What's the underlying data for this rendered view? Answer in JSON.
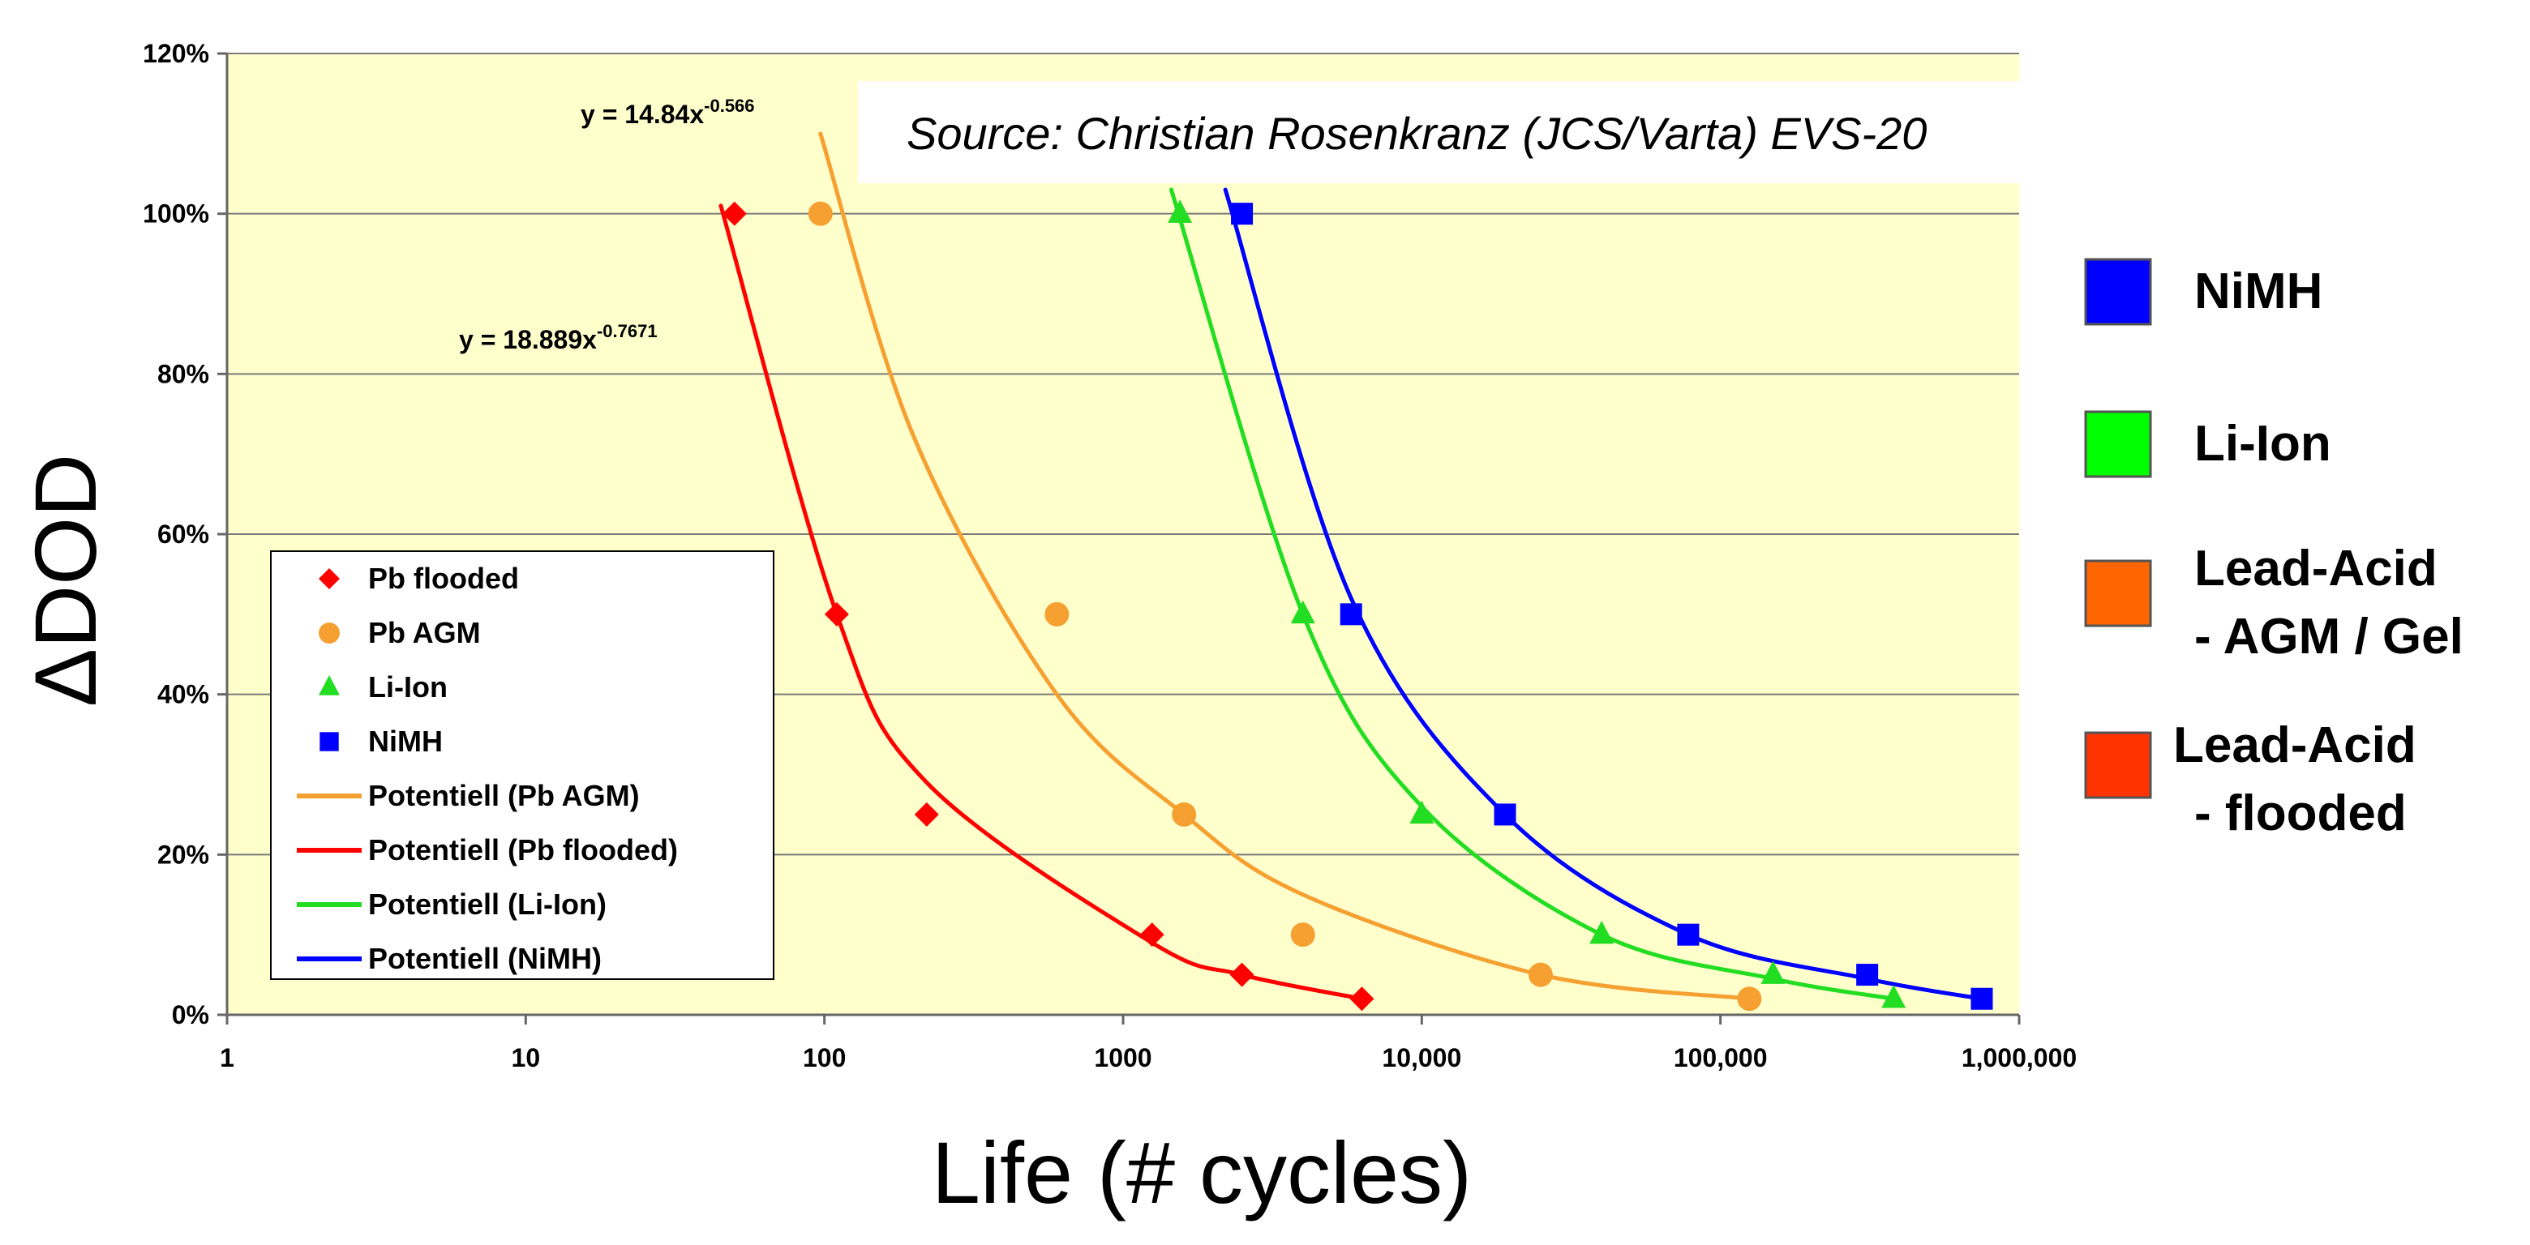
{
  "chart_data": {
    "type": "scatter",
    "x_scale": "log",
    "xlim": [
      1,
      1000000
    ],
    "ylim": [
      0,
      120
    ],
    "xlabel": "Life (# cycles)",
    "ylabel": "ΔDOD",
    "x_ticks": [
      {
        "value": 1,
        "label": "1"
      },
      {
        "value": 10,
        "label": "10"
      },
      {
        "value": 100,
        "label": "100"
      },
      {
        "value": 1000,
        "label": "1000"
      },
      {
        "value": 10000,
        "label": "10,000"
      },
      {
        "value": 100000,
        "label": "100,000"
      },
      {
        "value": 1000000,
        "label": "1,000,000"
      }
    ],
    "y_ticks": [
      {
        "value": 0,
        "label": "0%"
      },
      {
        "value": 20,
        "label": "20%"
      },
      {
        "value": 40,
        "label": "40%"
      },
      {
        "value": 60,
        "label": "60%"
      },
      {
        "value": 80,
        "label": "80%"
      },
      {
        "value": 100,
        "label": "100%"
      },
      {
        "value": 120,
        "label": "120%"
      }
    ],
    "grid": "horizontal",
    "background_color": "#FFFFCC",
    "series": [
      {
        "name": "Pb flooded",
        "marker": "diamond",
        "color": "#FF0000",
        "x": [
          50,
          110,
          220,
          1250,
          2500,
          6300
        ],
        "y": [
          100,
          50,
          25,
          10,
          5,
          2
        ]
      },
      {
        "name": "Pb AGM",
        "marker": "circle",
        "color": "#F5A030",
        "x": [
          97,
          600,
          1600,
          4000,
          25000,
          125000
        ],
        "y": [
          100,
          50,
          25,
          10,
          5,
          2
        ]
      },
      {
        "name": "Li-Ion",
        "marker": "triangle",
        "color": "#22DD22",
        "x": [
          1550,
          4000,
          10000,
          40000,
          150000,
          380000
        ],
        "y": [
          100,
          50,
          25,
          10,
          5,
          2
        ]
      },
      {
        "name": "NiMH",
        "marker": "square",
        "color": "#0000FF",
        "x": [
          2500,
          5800,
          19000,
          78000,
          310000,
          750000
        ],
        "y": [
          100,
          50,
          25,
          10,
          5,
          2
        ]
      }
    ],
    "trendlines": [
      {
        "name": "Potentiell (Pb AGM)",
        "color": "#F5A030",
        "x": [
          97,
          125000
        ],
        "fit": "power",
        "points": [
          [
            97,
            110
          ],
          [
            200,
            72
          ],
          [
            600,
            40
          ],
          [
            1600,
            25
          ],
          [
            4000,
            15
          ],
          [
            25000,
            5
          ],
          [
            125000,
            2
          ]
        ]
      },
      {
        "name": "Potentiell (Pb flooded)",
        "color": "#FF0000",
        "x": [
          45,
          6300
        ],
        "fit": "power",
        "points": [
          [
            45,
            101
          ],
          [
            110,
            50
          ],
          [
            220,
            29
          ],
          [
            1250,
            9
          ],
          [
            2500,
            5
          ],
          [
            6300,
            2
          ]
        ]
      },
      {
        "name": "Potentiell (Li-Ion)",
        "color": "#22DD22",
        "x": [
          1450,
          380000
        ],
        "fit": "power",
        "points": [
          [
            1450,
            103
          ],
          [
            4000,
            50
          ],
          [
            10000,
            26
          ],
          [
            40000,
            10
          ],
          [
            150000,
            4.5
          ],
          [
            380000,
            2
          ]
        ]
      },
      {
        "name": "Potentiell (NiMH)",
        "color": "#0000FF",
        "x": [
          2200,
          750000
        ],
        "fit": "power",
        "points": [
          [
            2200,
            103
          ],
          [
            5800,
            52
          ],
          [
            19000,
            25
          ],
          [
            78000,
            10
          ],
          [
            310000,
            4.5
          ],
          [
            750000,
            2
          ]
        ]
      }
    ],
    "annotations": [
      {
        "id": "eq_agm",
        "base": "y = 14.84x",
        "exponent": "-0.566"
      },
      {
        "id": "eq_flooded",
        "base": "y = 18.889x",
        "exponent": "-0.7671"
      },
      {
        "id": "source",
        "text": "Source: Christian Rosenkranz (JCS/Varta) EVS-20"
      }
    ],
    "legend": {
      "position": "lower-left-inside",
      "entries": [
        {
          "label": "Pb flooded",
          "kind": "marker",
          "marker": "diamond",
          "color": "#FF0000"
        },
        {
          "label": "Pb AGM",
          "kind": "marker",
          "marker": "circle",
          "color": "#F5A030"
        },
        {
          "label": "Li-Ion",
          "kind": "marker",
          "marker": "triangle",
          "color": "#22DD22"
        },
        {
          "label": "NiMH",
          "kind": "marker",
          "marker": "square",
          "color": "#0000FF"
        },
        {
          "label": "Potentiell (Pb AGM)",
          "kind": "line",
          "color": "#F5A030"
        },
        {
          "label": "Potentiell (Pb flooded)",
          "kind": "line",
          "color": "#FF0000"
        },
        {
          "label": "Potentiell (Li-Ion)",
          "kind": "line",
          "color": "#22DD22"
        },
        {
          "label": "Potentiell (NiMH)",
          "kind": "line",
          "color": "#0000FF"
        }
      ]
    },
    "side_legend": [
      {
        "lines": [
          "NiMH"
        ],
        "color": "#0000FF"
      },
      {
        "lines": [
          "Li-Ion"
        ],
        "color": "#00FF00"
      },
      {
        "lines": [
          "Lead-Acid",
          "- AGM / Gel"
        ],
        "color": "#FF6600"
      },
      {
        "lines": [
          "Lead-Acid",
          "- flooded"
        ],
        "color": "#FF3300"
      }
    ]
  }
}
